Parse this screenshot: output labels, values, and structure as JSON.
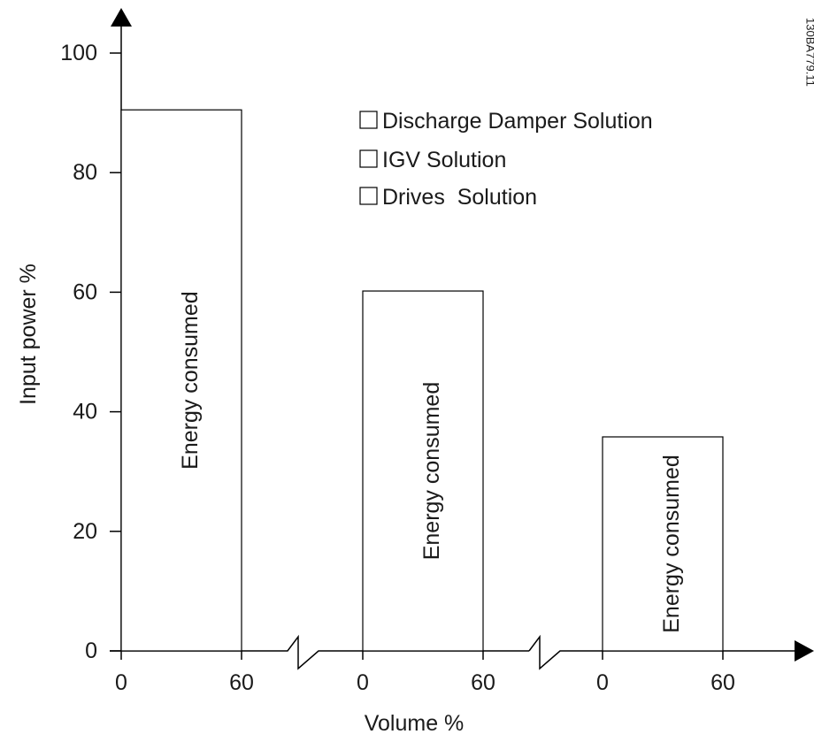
{
  "chart_data": {
    "type": "bar",
    "title": "",
    "xlabel": "Volume %",
    "ylabel": "Input power %",
    "ylim": [
      0,
      100
    ],
    "y_ticks": [
      "0",
      "20",
      "40",
      "60",
      "80",
      "100"
    ],
    "x_range": [
      0,
      60
    ],
    "x_tick_labels": [
      "0",
      "60"
    ],
    "bar_label": "Energy consumed",
    "legend": [
      "Discharge Damper Solution",
      "IGV Solution",
      "Drives  Solution"
    ],
    "legend_position": "top-right",
    "grid": false,
    "series": [
      {
        "name": "Discharge Damper Solution",
        "value": 90.5
      },
      {
        "name": "IGV Solution",
        "value": 60.2
      },
      {
        "name": "Drives  Solution",
        "value": 35.8
      }
    ],
    "doc_code": "130BA779.11"
  }
}
